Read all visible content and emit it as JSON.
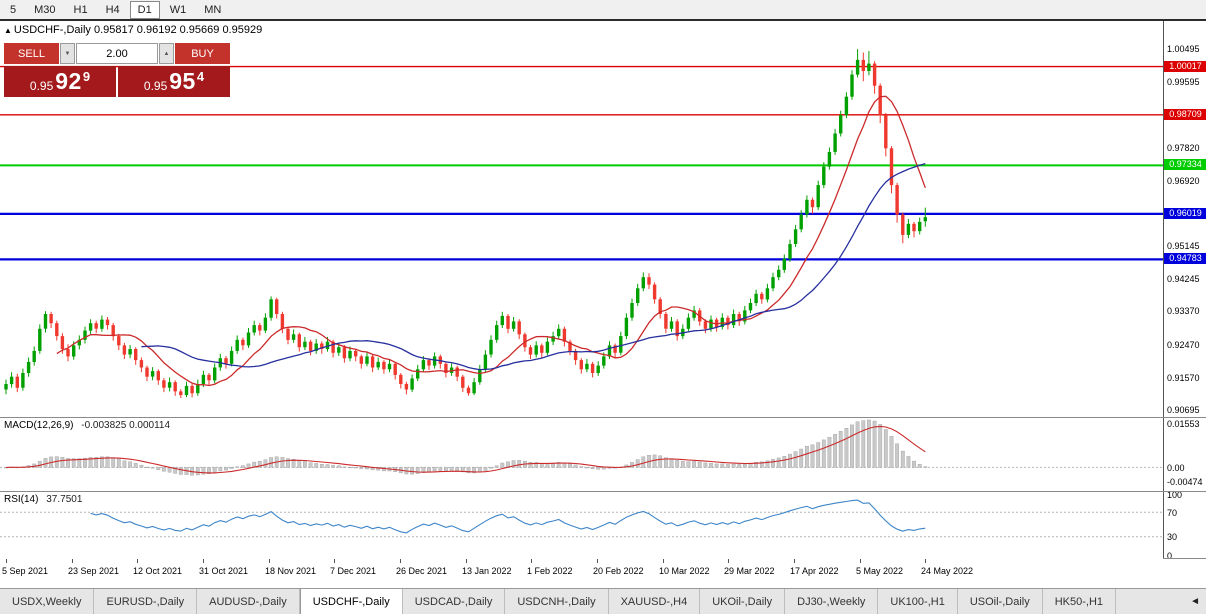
{
  "toolbar": {
    "timeframes": [
      "5",
      "M30",
      "H1",
      "H4",
      "D1",
      "W1",
      "MN"
    ],
    "active": "D1"
  },
  "chart_header": {
    "marker": "▲",
    "title": "USDCHF-,Daily",
    "ohlc": "0.95817 0.96192 0.95669 0.95929"
  },
  "trade_panel": {
    "sell_label": "SELL",
    "buy_label": "BUY",
    "volume": "2.00",
    "spin_down_icon": "▼",
    "spin_up_icon": "▲",
    "bid": {
      "base": "0.95",
      "big": "92",
      "sup": "9"
    },
    "ask": {
      "base": "0.95",
      "big": "95",
      "sup": "4"
    }
  },
  "price_axis": {
    "ticks": [
      "1.00495",
      "0.99595",
      "0.97820",
      "0.96920",
      "0.95145",
      "0.94245",
      "0.93370",
      "0.92470",
      "0.91570",
      "0.90695"
    ]
  },
  "colors": {
    "buy_sell_red": "#C3332C",
    "price_box_red": "#A3191C",
    "up_candle": "#00A000",
    "down_candle": "#EF382E",
    "ma_fast": "#CC2A2A",
    "ma_slow": "#27309E",
    "macd_hist": "#C9C9C9",
    "rsi_line": "#3D85C8"
  },
  "chart_data": {
    "type": "candlestick",
    "title": "USDCHF-,Daily",
    "y_range": [
      0.90695,
      1.00495
    ],
    "x_labels": [
      "5 Sep 2021",
      "23 Sep 2021",
      "12 Oct 2021",
      "31 Oct 2021",
      "18 Nov 2021",
      "7 Dec 2021",
      "26 Dec 2021",
      "13 Jan 2022",
      "1 Feb 2022",
      "20 Feb 2022",
      "10 Mar 2022",
      "29 Mar 2022",
      "17 Apr 2022",
      "5 May 2022",
      "24 May 2022"
    ],
    "hlines": [
      {
        "price": 1.00017,
        "label": "1.00017",
        "color": "#DD0000",
        "width": 1.4
      },
      {
        "price": 0.98709,
        "label": "0.98709",
        "color": "#DD0000",
        "width": 1.4
      },
      {
        "price": 0.97334,
        "label": "0.97334",
        "color": "#00CC00",
        "width": 2
      },
      {
        "price": 0.96019,
        "label": "0.96019",
        "color": "#0000DD",
        "width": 2.2
      },
      {
        "price": 0.94783,
        "label": "0.94783",
        "color": "#0000DD",
        "width": 2.2
      }
    ],
    "overlays": [
      {
        "name": "ma-fast",
        "kind": "sma",
        "period": 10,
        "color": "#CC2A2A"
      },
      {
        "name": "ma-slow",
        "kind": "sma",
        "period": 25,
        "color": "#27309E"
      }
    ],
    "indicators": [
      {
        "name": "MACD",
        "label": "MACD(12,26,9)",
        "values_text": "-0.003825 0.000114",
        "params": [
          12,
          26,
          9
        ],
        "axis": [
          "0.01553",
          "0.00",
          "-0.00474"
        ]
      },
      {
        "name": "RSI",
        "label": "RSI(14)",
        "value_text": "37.7501",
        "period": 14,
        "axis": [
          "100",
          "70",
          "30",
          "0"
        ],
        "levels": [
          70,
          30
        ]
      }
    ],
    "candles": [
      [
        0.9125,
        0.9152,
        0.9112,
        0.914
      ],
      [
        0.914,
        0.9172,
        0.913,
        0.916
      ],
      [
        0.916,
        0.9168,
        0.9118,
        0.913
      ],
      [
        0.913,
        0.9182,
        0.9122,
        0.917
      ],
      [
        0.917,
        0.9212,
        0.916,
        0.92
      ],
      [
        0.92,
        0.9242,
        0.919,
        0.923
      ],
      [
        0.923,
        0.9302,
        0.9222,
        0.929
      ],
      [
        0.929,
        0.9338,
        0.928,
        0.933
      ],
      [
        0.933,
        0.9336,
        0.9292,
        0.9305
      ],
      [
        0.9305,
        0.9312,
        0.9258,
        0.927
      ],
      [
        0.927,
        0.9278,
        0.9222,
        0.9235
      ],
      [
        0.9235,
        0.9248,
        0.9202,
        0.9215
      ],
      [
        0.9215,
        0.9256,
        0.9206,
        0.9245
      ],
      [
        0.9245,
        0.9272,
        0.9234,
        0.926
      ],
      [
        0.926,
        0.9296,
        0.925,
        0.9285
      ],
      [
        0.9285,
        0.9316,
        0.9276,
        0.9305
      ],
      [
        0.9305,
        0.9312,
        0.9278,
        0.929
      ],
      [
        0.929,
        0.9326,
        0.9282,
        0.9315
      ],
      [
        0.9315,
        0.9322,
        0.9288,
        0.93
      ],
      [
        0.93,
        0.9306,
        0.9258,
        0.927
      ],
      [
        0.927,
        0.9276,
        0.9232,
        0.9245
      ],
      [
        0.9245,
        0.9252,
        0.9208,
        0.922
      ],
      [
        0.922,
        0.9246,
        0.921,
        0.9235
      ],
      [
        0.9235,
        0.924,
        0.9192,
        0.9205
      ],
      [
        0.9205,
        0.9212,
        0.9172,
        0.9185
      ],
      [
        0.9185,
        0.919,
        0.9148,
        0.916
      ],
      [
        0.916,
        0.9186,
        0.915,
        0.9175
      ],
      [
        0.9175,
        0.918,
        0.9138,
        0.915
      ],
      [
        0.915,
        0.9156,
        0.9118,
        0.913
      ],
      [
        0.913,
        0.9158,
        0.912,
        0.9145
      ],
      [
        0.9145,
        0.915,
        0.9108,
        0.912
      ],
      [
        0.912,
        0.9126,
        0.9102,
        0.911
      ],
      [
        0.911,
        0.9146,
        0.9104,
        0.9135
      ],
      [
        0.9135,
        0.914,
        0.9104,
        0.9115
      ],
      [
        0.9115,
        0.9152,
        0.9108,
        0.914
      ],
      [
        0.914,
        0.9176,
        0.9132,
        0.9165
      ],
      [
        0.9165,
        0.917,
        0.9138,
        0.915
      ],
      [
        0.915,
        0.9196,
        0.9142,
        0.9185
      ],
      [
        0.9185,
        0.9222,
        0.9176,
        0.921
      ],
      [
        0.921,
        0.9216,
        0.9182,
        0.9195
      ],
      [
        0.9195,
        0.9242,
        0.9188,
        0.923
      ],
      [
        0.923,
        0.9272,
        0.9222,
        0.926
      ],
      [
        0.926,
        0.9266,
        0.9232,
        0.9245
      ],
      [
        0.9245,
        0.9292,
        0.9238,
        0.928
      ],
      [
        0.928,
        0.9312,
        0.9272,
        0.93
      ],
      [
        0.93,
        0.9306,
        0.9272,
        0.9285
      ],
      [
        0.9285,
        0.9332,
        0.9278,
        0.932
      ],
      [
        0.932,
        0.9378,
        0.9312,
        0.937
      ],
      [
        0.937,
        0.9374,
        0.9318,
        0.933
      ],
      [
        0.933,
        0.9336,
        0.9278,
        0.929
      ],
      [
        0.929,
        0.9296,
        0.9248,
        0.926
      ],
      [
        0.926,
        0.9288,
        0.9252,
        0.9275
      ],
      [
        0.9275,
        0.928,
        0.9228,
        0.924
      ],
      [
        0.924,
        0.9268,
        0.9232,
        0.9255
      ],
      [
        0.9255,
        0.926,
        0.9218,
        0.923
      ],
      [
        0.923,
        0.9262,
        0.9222,
        0.925
      ],
      [
        0.925,
        0.9256,
        0.9222,
        0.9235
      ],
      [
        0.9235,
        0.9268,
        0.9228,
        0.9255
      ],
      [
        0.9255,
        0.926,
        0.9212,
        0.9225
      ],
      [
        0.9225,
        0.9252,
        0.9216,
        0.924
      ],
      [
        0.924,
        0.9246,
        0.9198,
        0.921
      ],
      [
        0.921,
        0.9242,
        0.9202,
        0.923
      ],
      [
        0.923,
        0.9236,
        0.9202,
        0.9215
      ],
      [
        0.9215,
        0.922,
        0.9182,
        0.9195
      ],
      [
        0.9195,
        0.9226,
        0.9188,
        0.9215
      ],
      [
        0.9215,
        0.922,
        0.9172,
        0.9185
      ],
      [
        0.9185,
        0.9212,
        0.9178,
        0.92
      ],
      [
        0.92,
        0.9205,
        0.9168,
        0.918
      ],
      [
        0.918,
        0.9206,
        0.9172,
        0.9195
      ],
      [
        0.9195,
        0.92,
        0.9152,
        0.9165
      ],
      [
        0.9165,
        0.917,
        0.9128,
        0.914
      ],
      [
        0.914,
        0.9146,
        0.9112,
        0.9125
      ],
      [
        0.9125,
        0.9166,
        0.9118,
        0.9155
      ],
      [
        0.9155,
        0.9192,
        0.9148,
        0.918
      ],
      [
        0.918,
        0.9216,
        0.9172,
        0.9205
      ],
      [
        0.9205,
        0.921,
        0.9178,
        0.919
      ],
      [
        0.919,
        0.9226,
        0.9182,
        0.9215
      ],
      [
        0.9215,
        0.922,
        0.9182,
        0.9195
      ],
      [
        0.9195,
        0.92,
        0.9158,
        0.917
      ],
      [
        0.917,
        0.9196,
        0.9162,
        0.9185
      ],
      [
        0.9185,
        0.919,
        0.9148,
        0.916
      ],
      [
        0.916,
        0.9165,
        0.9118,
        0.913
      ],
      [
        0.913,
        0.9136,
        0.9108,
        0.9115
      ],
      [
        0.9115,
        0.9156,
        0.911,
        0.9145
      ],
      [
        0.9145,
        0.9192,
        0.9138,
        0.918
      ],
      [
        0.918,
        0.9232,
        0.9172,
        0.922
      ],
      [
        0.922,
        0.9272,
        0.9212,
        0.926
      ],
      [
        0.926,
        0.9312,
        0.9252,
        0.93
      ],
      [
        0.93,
        0.9336,
        0.9292,
        0.9325
      ],
      [
        0.9325,
        0.933,
        0.9278,
        0.929
      ],
      [
        0.929,
        0.9322,
        0.9282,
        0.931
      ],
      [
        0.931,
        0.9316,
        0.9262,
        0.9275
      ],
      [
        0.9275,
        0.928,
        0.9228,
        0.924
      ],
      [
        0.924,
        0.9246,
        0.9208,
        0.922
      ],
      [
        0.922,
        0.9256,
        0.9212,
        0.9245
      ],
      [
        0.9245,
        0.925,
        0.9212,
        0.9225
      ],
      [
        0.9225,
        0.9266,
        0.9218,
        0.9255
      ],
      [
        0.9255,
        0.9282,
        0.9246,
        0.927
      ],
      [
        0.927,
        0.9302,
        0.9262,
        0.929
      ],
      [
        0.929,
        0.9296,
        0.9242,
        0.9255
      ],
      [
        0.9255,
        0.926,
        0.9218,
        0.923
      ],
      [
        0.923,
        0.9236,
        0.9192,
        0.9205
      ],
      [
        0.9205,
        0.921,
        0.9168,
        0.918
      ],
      [
        0.918,
        0.9208,
        0.9172,
        0.9195
      ],
      [
        0.9195,
        0.92,
        0.9158,
        0.917
      ],
      [
        0.917,
        0.9202,
        0.9162,
        0.919
      ],
      [
        0.919,
        0.9226,
        0.9182,
        0.9215
      ],
      [
        0.9215,
        0.9256,
        0.9208,
        0.9245
      ],
      [
        0.9245,
        0.925,
        0.9212,
        0.9225
      ],
      [
        0.9225,
        0.9282,
        0.9218,
        0.927
      ],
      [
        0.927,
        0.9332,
        0.9262,
        0.932
      ],
      [
        0.932,
        0.9372,
        0.9312,
        0.936
      ],
      [
        0.936,
        0.9412,
        0.9352,
        0.94
      ],
      [
        0.94,
        0.9443,
        0.9392,
        0.943
      ],
      [
        0.943,
        0.9441,
        0.9398,
        0.941
      ],
      [
        0.941,
        0.9416,
        0.9358,
        0.937
      ],
      [
        0.937,
        0.9376,
        0.9318,
        0.933
      ],
      [
        0.933,
        0.9336,
        0.9278,
        0.929
      ],
      [
        0.929,
        0.9322,
        0.9282,
        0.931
      ],
      [
        0.931,
        0.9316,
        0.9258,
        0.927
      ],
      [
        0.927,
        0.9302,
        0.9262,
        0.929
      ],
      [
        0.929,
        0.9332,
        0.9282,
        0.932
      ],
      [
        0.932,
        0.9352,
        0.9312,
        0.934
      ],
      [
        0.934,
        0.9346,
        0.9298,
        0.931
      ],
      [
        0.931,
        0.9316,
        0.9278,
        0.929
      ],
      [
        0.929,
        0.9326,
        0.9282,
        0.9315
      ],
      [
        0.9315,
        0.932,
        0.9282,
        0.9295
      ],
      [
        0.9295,
        0.9332,
        0.9288,
        0.932
      ],
      [
        0.932,
        0.9326,
        0.9288,
        0.93
      ],
      [
        0.93,
        0.9342,
        0.9292,
        0.933
      ],
      [
        0.933,
        0.9336,
        0.9298,
        0.931
      ],
      [
        0.931,
        0.9352,
        0.9302,
        0.934
      ],
      [
        0.934,
        0.9372,
        0.9332,
        0.936
      ],
      [
        0.936,
        0.9396,
        0.9352,
        0.9385
      ],
      [
        0.9385,
        0.939,
        0.9358,
        0.937
      ],
      [
        0.937,
        0.9412,
        0.9362,
        0.94
      ],
      [
        0.94,
        0.9442,
        0.9392,
        0.943
      ],
      [
        0.943,
        0.9462,
        0.9422,
        0.945
      ],
      [
        0.945,
        0.9492,
        0.9442,
        0.948
      ],
      [
        0.948,
        0.9532,
        0.9472,
        0.952
      ],
      [
        0.952,
        0.9572,
        0.9512,
        0.956
      ],
      [
        0.956,
        0.9612,
        0.9552,
        0.96
      ],
      [
        0.96,
        0.9652,
        0.9592,
        0.964
      ],
      [
        0.964,
        0.9646,
        0.9602,
        0.962
      ],
      [
        0.962,
        0.9692,
        0.9612,
        0.968
      ],
      [
        0.968,
        0.9742,
        0.9672,
        0.973
      ],
      [
        0.973,
        0.9782,
        0.9722,
        0.977
      ],
      [
        0.977,
        0.9832,
        0.9762,
        0.982
      ],
      [
        0.982,
        0.9882,
        0.9812,
        0.987
      ],
      [
        0.987,
        0.9932,
        0.9862,
        0.992
      ],
      [
        0.992,
        0.9992,
        0.9912,
        0.998
      ],
      [
        0.998,
        1.0049,
        0.9972,
        1.002
      ],
      [
        1.002,
        1.004,
        0.9962,
        0.999
      ],
      [
        0.999,
        1.0044,
        0.9978,
        1.001
      ],
      [
        1.001,
        1.0016,
        0.9928,
        0.995
      ],
      [
        0.995,
        0.9956,
        0.9848,
        0.987
      ],
      [
        0.987,
        0.9876,
        0.9758,
        0.978
      ],
      [
        0.978,
        0.9786,
        0.9658,
        0.968
      ],
      [
        0.968,
        0.9686,
        0.9578,
        0.96
      ],
      [
        0.96,
        0.9606,
        0.9522,
        0.9545
      ],
      [
        0.9545,
        0.9588,
        0.9536,
        0.9575
      ],
      [
        0.9575,
        0.958,
        0.9538,
        0.9555
      ],
      [
        0.9555,
        0.9592,
        0.9546,
        0.958
      ],
      [
        0.9582,
        0.9619,
        0.9567,
        0.9593
      ]
    ]
  },
  "tabs": {
    "items": [
      "USDX,Weekly",
      "EURUSD-,Daily",
      "AUDUSD-,Daily",
      "USDCHF-,Daily",
      "USDCAD-,Daily",
      "USDCNH-,Daily",
      "XAUUSD-,H4",
      "UKOil-,Daily",
      "DJ30-,Weekly",
      "UK100-,H1",
      "USOil-,Daily",
      "HK50-,H1"
    ],
    "active": "USDCHF-,Daily",
    "scroll_icon": "◄"
  }
}
